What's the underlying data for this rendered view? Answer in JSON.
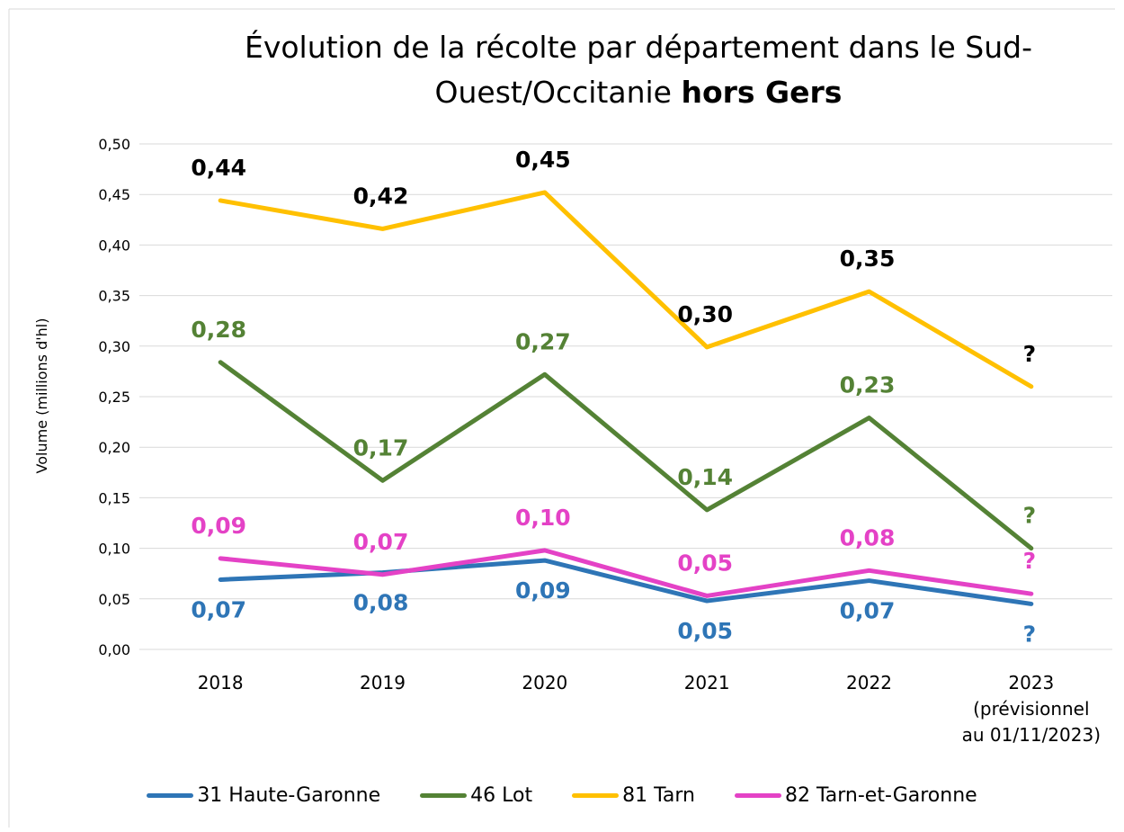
{
  "chart_data": {
    "type": "line",
    "title": "Évolution de la récolte par département dans le Sud-Ouest/Occitanie",
    "title_emphasis": "hors Gers",
    "y_label": "Volume (millions d'hl)",
    "categories": [
      "2018",
      "2019",
      "2020",
      "2021",
      "2022",
      "2023\n(prévisionnel\nau 01/11/2023)"
    ],
    "ylim": [
      0,
      0.5
    ],
    "yticks": [
      {
        "value": 0,
        "label": "0,00"
      },
      {
        "value": 0.05,
        "label": "0,05"
      },
      {
        "value": 0.1,
        "label": "0,10"
      },
      {
        "value": 0.15,
        "label": "0,15"
      },
      {
        "value": 0.2,
        "label": "0,20"
      },
      {
        "value": 0.25,
        "label": "0,25"
      },
      {
        "value": 0.3,
        "label": "0,30"
      },
      {
        "value": 0.35,
        "label": "0,35"
      },
      {
        "value": 0.4,
        "label": "0,40"
      },
      {
        "value": 0.45,
        "label": "0,45"
      },
      {
        "value": 0.5,
        "label": "0,50"
      }
    ],
    "grid": true,
    "legend": "bottom",
    "series": [
      {
        "name": "31 Haute-Garonne",
        "color": "#2e75b6",
        "label_color": "#2e75b6",
        "label_side": "below",
        "values": [
          0.069,
          0.076,
          0.088,
          0.048,
          0.068,
          0.045
        ],
        "value_labels": [
          "0,07",
          "0,08",
          "0,09",
          "0,05",
          "0,07",
          "?"
        ]
      },
      {
        "name": "46 Lot",
        "color": "#548235",
        "label_color": "#548235",
        "label_side": "above",
        "values": [
          0.284,
          0.167,
          0.272,
          0.138,
          0.229,
          0.1
        ],
        "value_labels": [
          "0,28",
          "0,17",
          "0,27",
          "0,14",
          "0,23",
          "?"
        ]
      },
      {
        "name": "81 Tarn",
        "color": "#ffc000",
        "label_color": "#000000",
        "label_side": "above",
        "values": [
          0.444,
          0.416,
          0.452,
          0.299,
          0.354,
          0.26
        ],
        "value_labels": [
          "0,44",
          "0,42",
          "0,45",
          "0,30",
          "0,35",
          "?"
        ]
      },
      {
        "name": "82 Tarn-et-Garonne",
        "color": "#e442c6",
        "label_color": "#e442c6",
        "label_side": "above",
        "values": [
          0.09,
          0.074,
          0.098,
          0.053,
          0.078,
          0.055
        ],
        "value_labels": [
          "0,09",
          "0,07",
          "0,10",
          "0,05",
          "0,08",
          "?"
        ]
      }
    ]
  }
}
